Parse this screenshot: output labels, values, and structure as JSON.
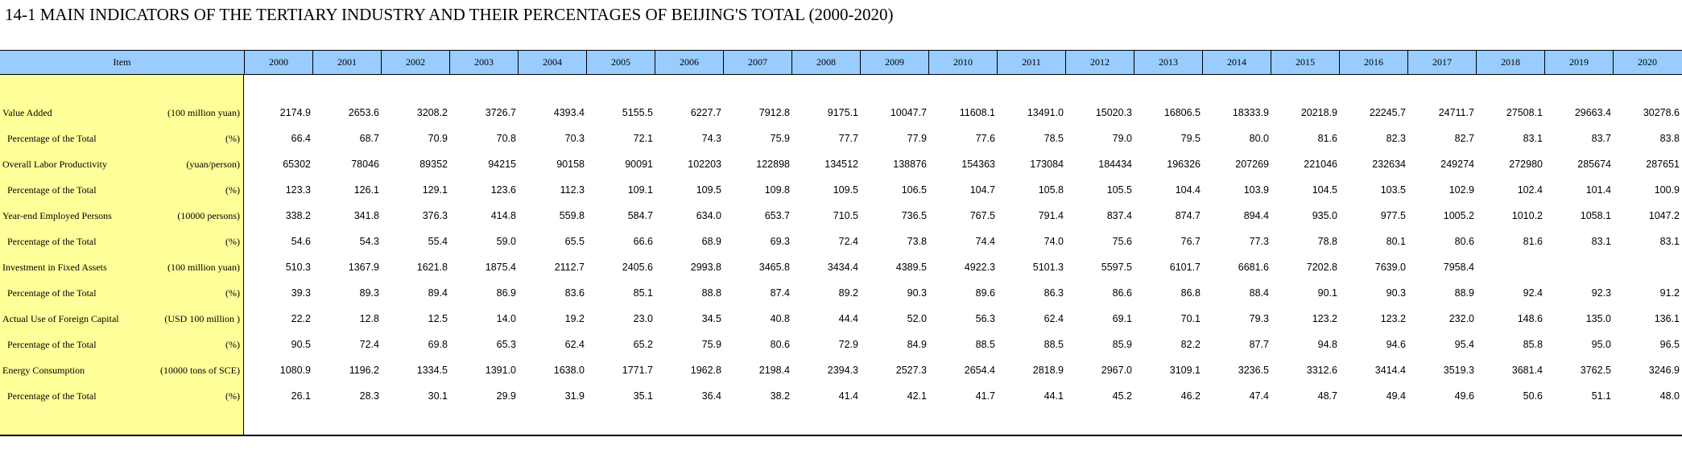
{
  "title": "14-1  MAIN INDICATORS OF THE TERTIARY INDUSTRY AND THEIR PERCENTAGES OF BEIJING'S TOTAL (2000-2020)",
  "header": {
    "item_label": "Item",
    "years": [
      "2000",
      "2001",
      "2002",
      "2003",
      "2004",
      "2005",
      "2006",
      "2007",
      "2008",
      "2009",
      "2010",
      "2011",
      "2012",
      "2013",
      "2014",
      "2015",
      "2016",
      "2017",
      "2018",
      "2019",
      "2020"
    ]
  },
  "colors": {
    "header_bg": "#99ccff",
    "label_bg": "#ffff99"
  },
  "rows": [
    {
      "name": "Value Added",
      "unit": "(100 million yuan)",
      "sub": false,
      "values": [
        "2174.9",
        "2653.6",
        "3208.2",
        "3726.7",
        "4393.4",
        "5155.5",
        "6227.7",
        "7912.8",
        "9175.1",
        "10047.7",
        "11608.1",
        "13491.0",
        "15020.3",
        "16806.5",
        "18333.9",
        "20218.9",
        "22245.7",
        "24711.7",
        "27508.1",
        "29663.4",
        "30278.6"
      ]
    },
    {
      "name": "Percentage of the Total",
      "unit": "(%)",
      "sub": true,
      "values": [
        "66.4",
        "68.7",
        "70.9",
        "70.8",
        "70.3",
        "72.1",
        "74.3",
        "75.9",
        "77.7",
        "77.9",
        "77.6",
        "78.5",
        "79.0",
        "79.5",
        "80.0",
        "81.6",
        "82.3",
        "82.7",
        "83.1",
        "83.7",
        "83.8"
      ]
    },
    {
      "name": "Overall Labor Productivity",
      "unit": "(yuan/person)",
      "sub": false,
      "values": [
        "65302",
        "78046",
        "89352",
        "94215",
        "90158",
        "90091",
        "102203",
        "122898",
        "134512",
        "138876",
        "154363",
        "173084",
        "184434",
        "196326",
        "207269",
        "221046",
        "232634",
        "249274",
        "272980",
        "285674",
        "287651"
      ]
    },
    {
      "name": "Percentage of the Total",
      "unit": "(%)",
      "sub": true,
      "values": [
        "123.3",
        "126.1",
        "129.1",
        "123.6",
        "112.3",
        "109.1",
        "109.5",
        "109.8",
        "109.5",
        "106.5",
        "104.7",
        "105.8",
        "105.5",
        "104.4",
        "103.9",
        "104.5",
        "103.5",
        "102.9",
        "102.4",
        "101.4",
        "100.9"
      ]
    },
    {
      "name": "Year-end Employed Persons",
      "unit": "(10000 persons)",
      "sub": false,
      "values": [
        "338.2",
        "341.8",
        "376.3",
        "414.8",
        "559.8",
        "584.7",
        "634.0",
        "653.7",
        "710.5",
        "736.5",
        "767.5",
        "791.4",
        "837.4",
        "874.7",
        "894.4",
        "935.0",
        "977.5",
        "1005.2",
        "1010.2",
        "1058.1",
        "1047.2"
      ]
    },
    {
      "name": "Percentage of the Total",
      "unit": "(%)",
      "sub": true,
      "values": [
        "54.6",
        "54.3",
        "55.4",
        "59.0",
        "65.5",
        "66.6",
        "68.9",
        "69.3",
        "72.4",
        "73.8",
        "74.4",
        "74.0",
        "75.6",
        "76.7",
        "77.3",
        "78.8",
        "80.1",
        "80.6",
        "81.6",
        "83.1",
        "83.1"
      ]
    },
    {
      "name": "Investment in Fixed Assets",
      "unit": "(100 million yuan)",
      "sub": false,
      "values": [
        "510.3",
        "1367.9",
        "1621.8",
        "1875.4",
        "2112.7",
        "2405.6",
        "2993.8",
        "3465.8",
        "3434.4",
        "4389.5",
        "4922.3",
        "5101.3",
        "5597.5",
        "6101.7",
        "6681.6",
        "7202.8",
        "7639.0",
        "7958.4",
        "",
        "",
        ""
      ]
    },
    {
      "name": "Percentage of the Total",
      "unit": "(%)",
      "sub": true,
      "values": [
        "39.3",
        "89.3",
        "89.4",
        "86.9",
        "83.6",
        "85.1",
        "88.8",
        "87.4",
        "89.2",
        "90.3",
        "89.6",
        "86.3",
        "86.6",
        "86.8",
        "88.4",
        "90.1",
        "90.3",
        "88.9",
        "92.4",
        "92.3",
        "91.2"
      ]
    },
    {
      "name": "Actual Use of Foreign Capital",
      "unit": "(USD 100 million )",
      "sub": false,
      "values": [
        "22.2",
        "12.8",
        "12.5",
        "14.0",
        "19.2",
        "23.0",
        "34.5",
        "40.8",
        "44.4",
        "52.0",
        "56.3",
        "62.4",
        "69.1",
        "70.1",
        "79.3",
        "123.2",
        "123.2",
        "232.0",
        "148.6",
        "135.0",
        "136.1"
      ]
    },
    {
      "name": "Percentage of the Total",
      "unit": "(%)",
      "sub": true,
      "values": [
        "90.5",
        "72.4",
        "69.8",
        "65.3",
        "62.4",
        "65.2",
        "75.9",
        "80.6",
        "72.9",
        "84.9",
        "88.5",
        "88.5",
        "85.9",
        "82.2",
        "87.7",
        "94.8",
        "94.6",
        "95.4",
        "85.8",
        "95.0",
        "96.5"
      ]
    },
    {
      "name": "Energy  Consumption",
      "unit": "(10000 tons of SCE)",
      "sub": false,
      "values": [
        "1080.9",
        "1196.2",
        "1334.5",
        "1391.0",
        "1638.0",
        "1771.7",
        "1962.8",
        "2198.4",
        "2394.3",
        "2527.3",
        "2654.4",
        "2818.9",
        "2967.0",
        "3109.1",
        "3236.5",
        "3312.6",
        "3414.4",
        "3519.3",
        "3681.4",
        "3762.5",
        "3246.9"
      ]
    },
    {
      "name": "Percentage of the Total",
      "unit": "(%)",
      "sub": true,
      "values": [
        "26.1",
        "28.3",
        "30.1",
        "29.9",
        "31.9",
        "35.1",
        "36.4",
        "38.2",
        "41.4",
        "42.1",
        "41.7",
        "44.1",
        "45.2",
        "46.2",
        "47.4",
        "48.7",
        "49.4",
        "49.6",
        "50.6",
        "51.1",
        "48.0"
      ]
    }
  ]
}
